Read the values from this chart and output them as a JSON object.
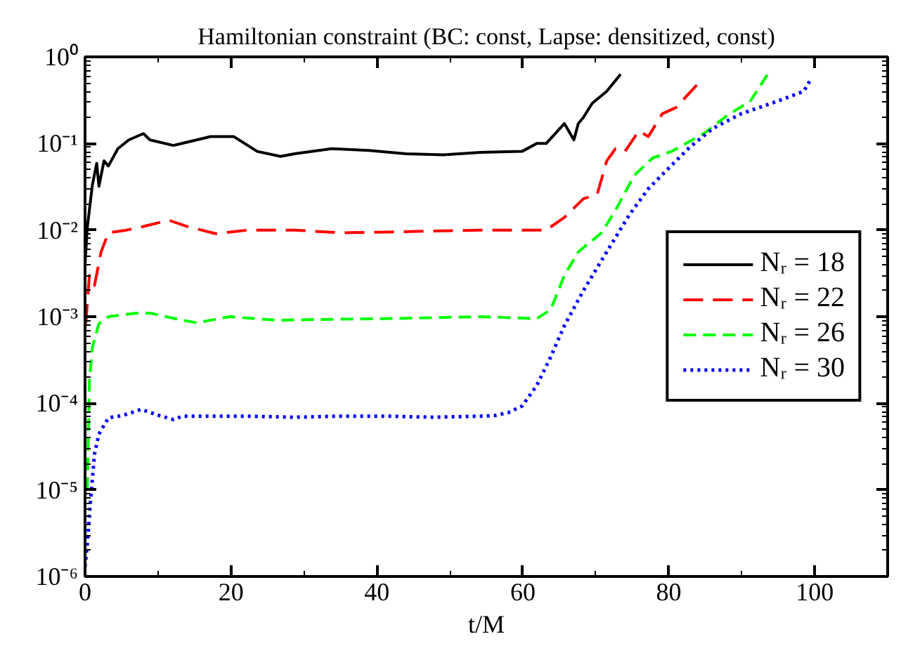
{
  "chart_data": {
    "type": "line",
    "title": "Hamiltonian constraint (BC: const, Lapse: densitized, const)",
    "xlabel": "t/M",
    "log": "y",
    "xlim": [
      0,
      110
    ],
    "xticks": [
      0,
      20,
      40,
      60,
      80,
      100
    ],
    "ylim": [
      1e-06,
      1
    ],
    "yticks": [
      {
        "value": 1e-06,
        "label": "10⁻⁶"
      },
      {
        "value": 1e-05,
        "label": "10⁻⁵"
      },
      {
        "value": 0.0001,
        "label": "10⁻⁴"
      },
      {
        "value": 0.001,
        "label": "10⁻³"
      },
      {
        "value": 0.01,
        "label": "10⁻²"
      },
      {
        "value": 0.1,
        "label": "10⁻¹"
      },
      {
        "value": 1,
        "label": "10⁰"
      }
    ],
    "grid": false,
    "legend": "right",
    "marker": "none",
    "series": [
      {
        "name": "Nᵣ = 18",
        "color": "#000000",
        "line_style": "solid",
        "x": [
          0,
          0.3,
          1,
          1.6,
          1.9,
          2.6,
          3.2,
          4.5,
          6,
          8,
          8.9,
          12.1,
          15.3,
          17.2,
          20.4,
          23.6,
          26.8,
          28.7,
          33.8,
          38.9,
          44,
          49.1,
          54.2,
          59.9,
          61.9,
          63.2,
          65.7,
          67,
          67.6,
          68.3,
          69.5,
          71.5,
          73.4
        ],
        "values": [
          0.004,
          0.0105,
          0.033,
          0.059,
          0.032,
          0.063,
          0.055,
          0.087,
          0.11,
          0.13,
          0.11,
          0.095,
          0.11,
          0.12,
          0.12,
          0.081,
          0.071,
          0.076,
          0.087,
          0.083,
          0.076,
          0.074,
          0.079,
          0.081,
          0.1,
          0.1,
          0.17,
          0.11,
          0.17,
          0.2,
          0.29,
          0.4,
          0.63
        ]
      },
      {
        "name": "Nᵣ = 22",
        "color": "#ff0000",
        "line_style": "dashed",
        "x": [
          0.1,
          0.6,
          1.3,
          2.2,
          3.2,
          5.7,
          8,
          11.5,
          14,
          17.9,
          22.3,
          28.7,
          35,
          41.5,
          54.2,
          63.2,
          65.7,
          68.3,
          70.2,
          71.5,
          72.7,
          74,
          75.9,
          77.2,
          79.1,
          81,
          84.1
        ],
        "values": [
          0.00083,
          0.003,
          0.0023,
          0.0056,
          0.0093,
          0.01,
          0.011,
          0.013,
          0.011,
          0.0091,
          0.01,
          0.01,
          0.0093,
          0.0095,
          0.01,
          0.01,
          0.014,
          0.023,
          0.026,
          0.063,
          0.087,
          0.081,
          0.14,
          0.12,
          0.22,
          0.26,
          0.5
        ]
      },
      {
        "name": "Nᵣ = 26",
        "color": "#00ff00",
        "line_style": "dashed",
        "x": [
          0.3,
          0.6,
          1,
          1.9,
          3.2,
          7,
          8.9,
          12.8,
          15.3,
          19.8,
          26.2,
          32.5,
          41.5,
          54.2,
          61.9,
          63.8,
          65.7,
          67.6,
          70.8,
          72.7,
          75.3,
          77.8,
          80.4,
          84.8,
          88,
          91.2,
          93.5
        ],
        "values": [
          1e-05,
          0.00018,
          0.00044,
          0.00083,
          0.001,
          0.0011,
          0.0011,
          0.00093,
          0.00085,
          0.001,
          0.00091,
          0.00093,
          0.00095,
          0.001,
          0.00095,
          0.0012,
          0.003,
          0.0056,
          0.0093,
          0.017,
          0.043,
          0.068,
          0.081,
          0.13,
          0.21,
          0.31,
          0.62
        ]
      },
      {
        "name": "Nᵣ = 30",
        "color": "#0000ff",
        "line_style": "dotted",
        "x": [
          0,
          0.3,
          0.8,
          1.3,
          1.9,
          3.2,
          5.1,
          7.7,
          10.2,
          12.1,
          13.4,
          22.3,
          28.7,
          35,
          41.5,
          47.8,
          54.2,
          56.1,
          58,
          59.9,
          61.9,
          63.8,
          65.7,
          68.3,
          71.5,
          74.6,
          77.2,
          79.7,
          82.9,
          86.1,
          89.9,
          95,
          98.5,
          99.4
        ],
        "values": [
          1.3e-06,
          2.3e-06,
          8.3e-06,
          2.6e-05,
          4.4e-05,
          6.8e-05,
          7.2e-05,
          8.5e-05,
          7.2e-05,
          6.5e-05,
          7.1e-05,
          7.1e-05,
          6.9e-05,
          7.1e-05,
          7.1e-05,
          6.9e-05,
          7.1e-05,
          7.2e-05,
          7.8e-05,
          9.3e-05,
          0.00016,
          0.00034,
          0.00079,
          0.002,
          0.0056,
          0.015,
          0.03,
          0.049,
          0.091,
          0.15,
          0.22,
          0.31,
          0.4,
          0.54
        ]
      }
    ]
  }
}
